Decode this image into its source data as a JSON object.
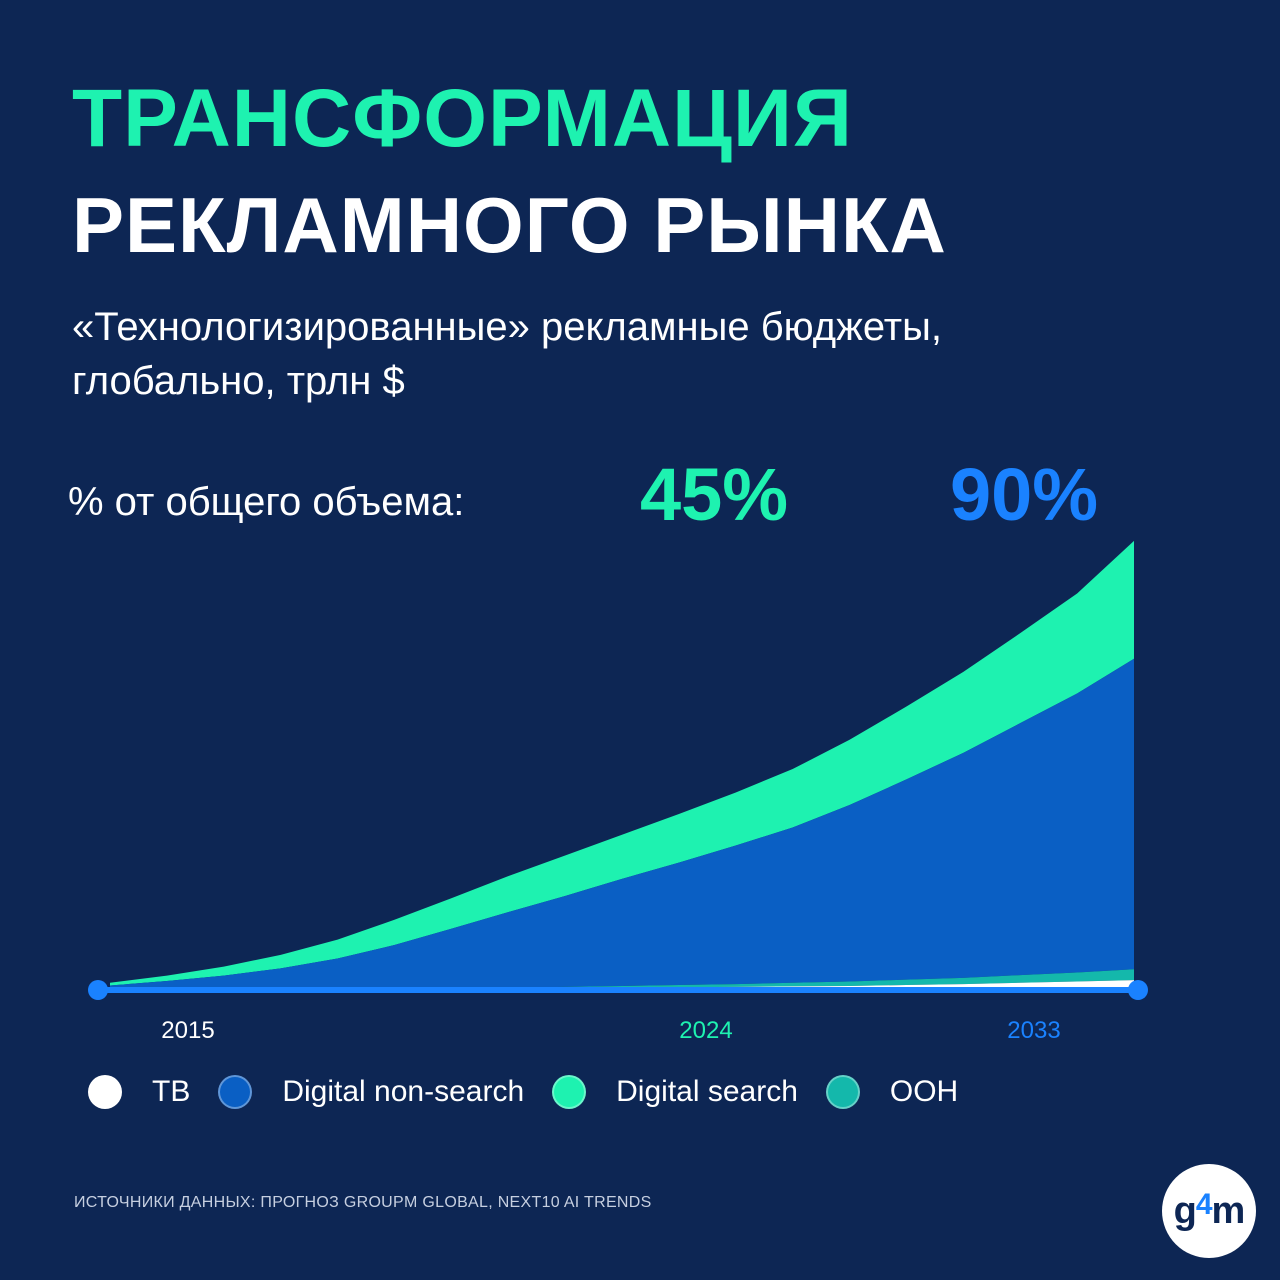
{
  "header": {
    "title_line1": "ТРАНСФОРМАЦИЯ",
    "title_line2": "РЕКЛАМНОГО РЫНКА",
    "subtitle": "«Технологизированные» рекламные бюджеты, глобально, трлн $"
  },
  "share": {
    "label": "% от общего объема:",
    "value_2024": "45%",
    "value_2033": "90%"
  },
  "footer": {
    "source": "ИСТОЧНИКИ ДАННЫХ: ПРОГНОЗ GROUPM GLOBAL, NEXT10 AI TRENDS"
  },
  "logo": {
    "text_before": "g",
    "text_accent": "4",
    "text_after": "m"
  },
  "chart_data": {
    "type": "area",
    "stacked": true,
    "x": [
      2015,
      2016,
      2017,
      2018,
      2019,
      2020,
      2021,
      2022,
      2023,
      2024,
      2025,
      2026,
      2027,
      2028,
      2029,
      2030,
      2031,
      2032,
      2033
    ],
    "x_tick_labels": [
      "2015",
      "2024",
      "2033"
    ],
    "x_tick_colors": [
      "#ffffff",
      "#1ef2b0",
      "#1a82ff"
    ],
    "ylim": [
      0,
      1.0
    ],
    "grid": false,
    "legend_position": "bottom",
    "series": [
      {
        "name": "ТВ",
        "color": "#ffffff",
        "values": [
          0.002,
          0.002,
          0.002,
          0.002,
          0.002,
          0.002,
          0.003,
          0.003,
          0.004,
          0.005,
          0.006,
          0.007,
          0.008,
          0.009,
          0.011,
          0.013,
          0.016,
          0.019,
          0.022
        ]
      },
      {
        "name": "OOH",
        "color": "#14b8ab",
        "values": [
          0.0,
          0.0,
          0.0,
          0.0,
          0.0,
          0.0,
          0.001,
          0.002,
          0.003,
          0.004,
          0.005,
          0.006,
          0.008,
          0.01,
          0.012,
          0.014,
          0.017,
          0.02,
          0.024
        ]
      },
      {
        "name": "Digital non-search",
        "color": "#0a5fc4",
        "values": [
          0.008,
          0.018,
          0.03,
          0.046,
          0.068,
          0.098,
          0.132,
          0.168,
          0.202,
          0.238,
          0.272,
          0.308,
          0.345,
          0.392,
          0.445,
          0.5,
          0.56,
          0.62,
          0.69
        ]
      },
      {
        "name": "Digital search",
        "color": "#1ef2b0",
        "values": [
          0.006,
          0.012,
          0.02,
          0.03,
          0.042,
          0.056,
          0.068,
          0.08,
          0.09,
          0.098,
          0.108,
          0.118,
          0.13,
          0.145,
          0.162,
          0.18,
          0.2,
          0.222,
          0.262
        ]
      }
    ]
  }
}
